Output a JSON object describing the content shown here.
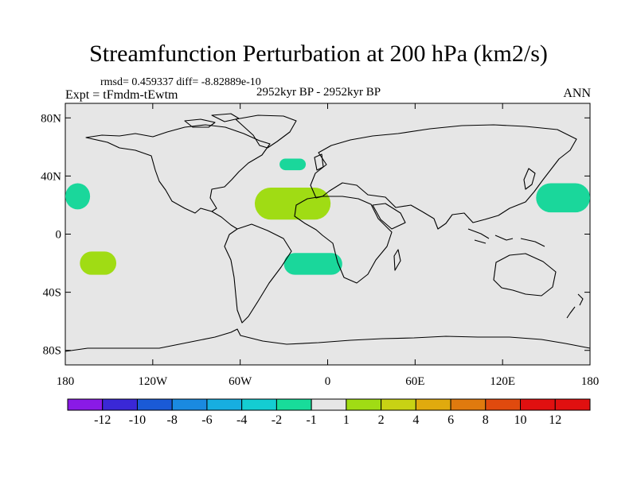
{
  "title": "Streamfunction Perturbation at 200 hPa (km2/s)",
  "stats": {
    "rmsd": "rmsd= 0.459337",
    "diff": "diff= -8.82889e-10"
  },
  "experiment": "Expt = tFmdm-tEwtm",
  "period": "2952kyr BP - 2952kyr BP",
  "season": "ANN",
  "axes": {
    "lat_labels": [
      "80N",
      "40N",
      "0",
      "40S",
      "80S"
    ],
    "lat_values": [
      80,
      40,
      0,
      -40,
      -80
    ],
    "lon_labels": [
      "180",
      "120W",
      "60W",
      "0",
      "60E",
      "120E",
      "180"
    ],
    "lon_values": [
      -180,
      -120,
      -60,
      0,
      60,
      120,
      180
    ],
    "lon_range": [
      -180,
      180
    ],
    "lat_range": [
      -90,
      90
    ]
  },
  "colorbar": {
    "labels": [
      "-12",
      "-10",
      "-8",
      "-6",
      "-4",
      "-2",
      "-1",
      "1",
      "2",
      "4",
      "6",
      "8",
      "10",
      "12"
    ],
    "colors": [
      "#8a1ae6",
      "#3a28d6",
      "#1a5ad6",
      "#1a8ae0",
      "#17aee0",
      "#14cdd2",
      "#18dc9a",
      "#e6e6e6",
      "#a0dc14",
      "#c8d214",
      "#e0aa0e",
      "#e07a0e",
      "#e04a0e",
      "#e01010",
      "#e01010"
    ]
  },
  "colors": {
    "background": "#e6e6e6",
    "negative_anomaly": "#1ad79b",
    "positive_anomaly": "#a0dc14"
  },
  "anomalies": [
    {
      "name": "north-pacific-east",
      "sign": "negative",
      "lon": [
        -180,
        -163
      ],
      "lat": [
        17,
        35
      ]
    },
    {
      "name": "north-pacific-west",
      "sign": "negative",
      "lon": [
        143,
        180
      ],
      "lat": [
        15,
        35
      ]
    },
    {
      "name": "north-atlantic",
      "sign": "negative",
      "lon": [
        -33,
        -15
      ],
      "lat": [
        44,
        52
      ]
    },
    {
      "name": "tropical-atlantic",
      "sign": "positive",
      "lon": [
        -50,
        2
      ],
      "lat": [
        10,
        32
      ]
    },
    {
      "name": "south-atlantic",
      "sign": "negative",
      "lon": [
        -30,
        10
      ],
      "lat": [
        -28,
        -13
      ]
    },
    {
      "name": "south-pacific",
      "sign": "positive",
      "lon": [
        -170,
        -145
      ],
      "lat": [
        -28,
        -12
      ]
    }
  ]
}
